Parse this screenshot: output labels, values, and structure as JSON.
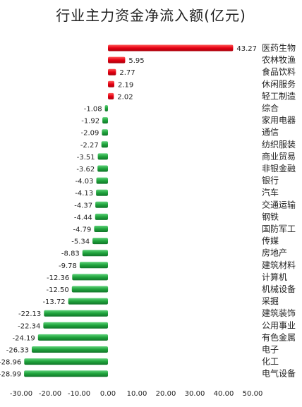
{
  "chart_data": {
    "type": "bar",
    "orientation": "horizontal",
    "title": "行业主力资金净流入额(亿元)",
    "xlabel": "",
    "ylabel": "",
    "xlim": [
      -30,
      50
    ],
    "xticks": [
      "-30.00",
      "-20.00",
      "-10.00",
      "0.00",
      "10.00",
      "20.00",
      "30.00",
      "40.00",
      "50.00"
    ],
    "grid": false,
    "legend": "none",
    "positive_color": "#e60012",
    "negative_color": "#1fa33c",
    "categories": [
      "医药生物",
      "农林牧渔",
      "食品饮料",
      "休闲服务",
      "轻工制造",
      "综合",
      "家用电器",
      "通信",
      "纺织服装",
      "商业贸易",
      "非银金融",
      "银行",
      "汽车",
      "交通运输",
      "钢铁",
      "国防军工",
      "传媒",
      "房地产",
      "建筑材料",
      "计算机",
      "机械设备",
      "采掘",
      "建筑装饰",
      "公用事业",
      "有色金属",
      "电子",
      "化工",
      "电气设备"
    ],
    "values": [
      43.27,
      5.95,
      2.77,
      2.19,
      2.02,
      -1.08,
      -1.92,
      -2.09,
      -2.27,
      -3.51,
      -3.62,
      -4.03,
      -4.13,
      -4.37,
      -4.44,
      -4.79,
      -5.34,
      -8.83,
      -9.78,
      -12.36,
      -12.5,
      -13.72,
      -22.13,
      -22.34,
      -24.19,
      -26.33,
      -28.96,
      -28.99
    ],
    "value_labels": [
      "43.27",
      "5.95",
      "2.77",
      "2.19",
      "2.02",
      "-1.08",
      "-1.92",
      "-2.09",
      "-2.27",
      "-3.51",
      "-3.62",
      "-4.03",
      "-4.13",
      "-4.37",
      "-4.44",
      "-4.79",
      "-5.34",
      "-8.83",
      "-9.78",
      "-12.36",
      "-12.50",
      "-13.72",
      "-22.13",
      "-22.34",
      "-24.19",
      "-26.33",
      "-28.96",
      "-28.99"
    ]
  }
}
